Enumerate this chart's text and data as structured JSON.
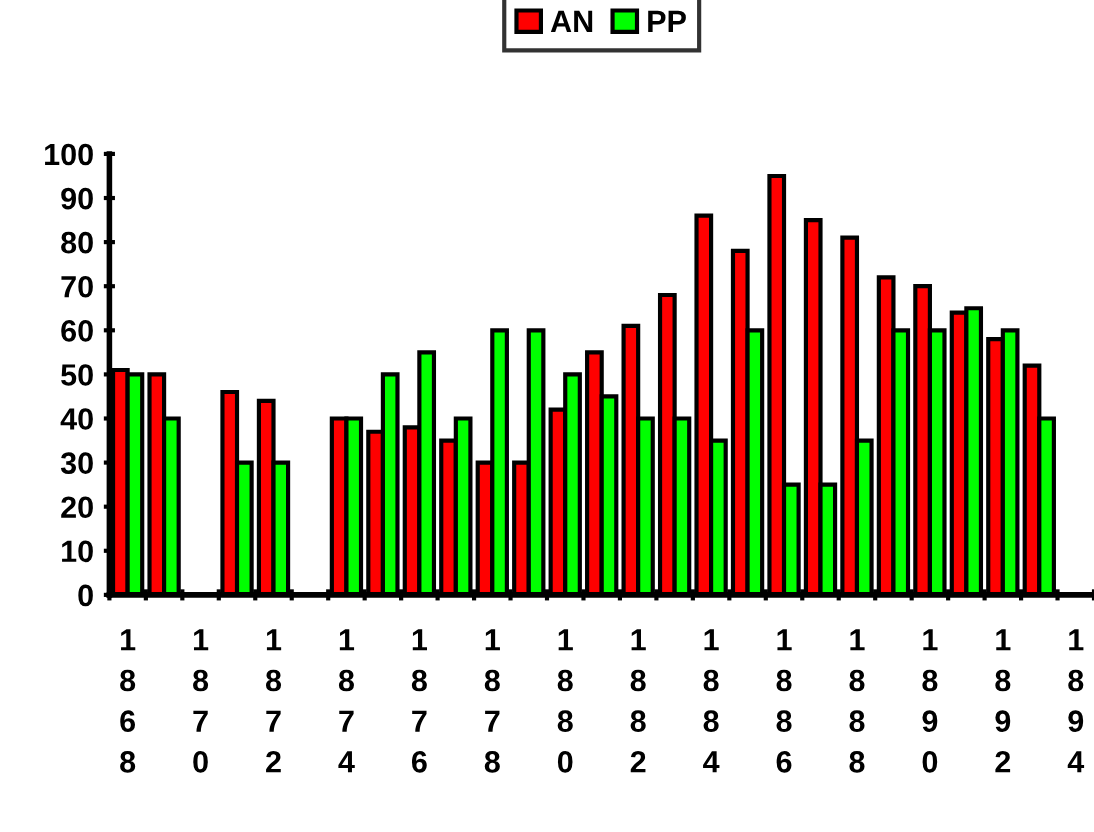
{
  "chart_data": {
    "type": "bar",
    "categories": [
      "1868",
      null,
      "1870",
      null,
      "1872",
      null,
      "1874",
      null,
      "1876",
      null,
      "1878",
      null,
      "1880",
      null,
      "1882",
      null,
      "1884",
      null,
      "1886",
      null,
      "1888",
      null,
      "1890",
      null,
      "1892",
      null,
      "1894"
    ],
    "series": [
      {
        "name": "AN",
        "color": "#ff0000",
        "values": [
          51,
          50,
          null,
          46,
          44,
          null,
          40,
          37,
          38,
          35,
          30,
          30,
          42,
          55,
          61,
          68,
          86,
          78,
          95,
          85,
          81,
          72,
          70,
          64,
          58,
          52,
          null
        ]
      },
      {
        "name": "PP",
        "color": "#00ff00",
        "values": [
          50,
          40,
          null,
          30,
          30,
          null,
          40,
          50,
          55,
          40,
          60,
          60,
          50,
          45,
          40,
          40,
          35,
          60,
          25,
          25,
          35,
          60,
          60,
          65,
          60,
          40,
          null
        ]
      }
    ],
    "ylim": [
      0,
      100
    ],
    "yticks": [
      0,
      10,
      20,
      30,
      40,
      50,
      60,
      70,
      80,
      90,
      100
    ],
    "grid": false,
    "legend": "top"
  }
}
